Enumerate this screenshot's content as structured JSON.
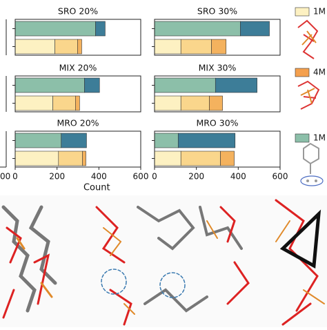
{
  "chart_data": [
    {
      "type": "bar",
      "orientation": "horizontal",
      "title": "SRO 20%",
      "categories": [
        null,
        null
      ],
      "xlim": [
        0,
        600
      ],
      "series": [
        {
          "color": "#8cbfa9",
          "values": [
            384,
            null
          ]
        },
        {
          "color": "#3d7d98",
          "values": [
            46,
            null
          ]
        },
        {
          "color": "#fdf1c2",
          "values": [
            null,
            190
          ]
        },
        {
          "color": "#fad68c",
          "values": [
            null,
            108
          ]
        },
        {
          "color": "#f4b25e",
          "values": [
            null,
            20
          ]
        }
      ]
    },
    {
      "type": "bar",
      "orientation": "horizontal",
      "title": "SRO 30%",
      "categories": [
        null,
        null
      ],
      "xlim": [
        0,
        600
      ],
      "series": [
        {
          "color": "#8cbfa9",
          "values": [
            410,
            null
          ]
        },
        {
          "color": "#3d7d98",
          "values": [
            139,
            null
          ]
        },
        {
          "color": "#fdf1c2",
          "values": [
            null,
            126
          ]
        },
        {
          "color": "#fad68c",
          "values": [
            null,
            146
          ]
        },
        {
          "color": "#f4b25e",
          "values": [
            null,
            70
          ]
        }
      ]
    },
    {
      "type": "bar",
      "orientation": "horizontal",
      "title": "MIX 20%",
      "categories": [
        null,
        null
      ],
      "xlim": [
        0,
        600
      ],
      "series": [
        {
          "color": "#8cbfa9",
          "values": [
            331,
            null
          ]
        },
        {
          "color": "#3d7d98",
          "values": [
            72,
            null
          ]
        },
        {
          "color": "#fdf1c2",
          "values": [
            null,
            180
          ]
        },
        {
          "color": "#fad68c",
          "values": [
            null,
            108
          ]
        },
        {
          "color": "#f4b25e",
          "values": [
            null,
            20
          ]
        }
      ]
    },
    {
      "type": "bar",
      "orientation": "horizontal",
      "title": "MIX 30%",
      "categories": [
        null,
        null
      ],
      "xlim": [
        0,
        600
      ],
      "series": [
        {
          "color": "#8cbfa9",
          "values": [
            291,
            null
          ]
        },
        {
          "color": "#3d7d98",
          "values": [
            199,
            null
          ]
        },
        {
          "color": "#fdf1c2",
          "values": [
            null,
            126
          ]
        },
        {
          "color": "#fad68c",
          "values": [
            null,
            136
          ]
        },
        {
          "color": "#f4b25e",
          "values": [
            null,
            63
          ]
        }
      ]
    },
    {
      "type": "bar",
      "orientation": "horizontal",
      "title": "MRO 20%",
      "categories": [
        null,
        null
      ],
      "xlim": [
        0,
        600
      ],
      "xticks": [
        0,
        200,
        400,
        600
      ],
      "xlabel": "Count",
      "series": [
        {
          "color": "#8cbfa9",
          "values": [
            220,
            null
          ]
        },
        {
          "color": "#3d7d98",
          "values": [
            121,
            null
          ]
        },
        {
          "color": "#fdf1c2",
          "values": [
            null,
            207
          ]
        },
        {
          "color": "#fad68c",
          "values": [
            null,
            115
          ]
        },
        {
          "color": "#f4b25e",
          "values": [
            null,
            16
          ]
        }
      ]
    },
    {
      "type": "bar",
      "orientation": "horizontal",
      "title": "MRO 30%",
      "categories": [
        null,
        null
      ],
      "xlim": [
        0,
        600
      ],
      "xticks": [
        0,
        200,
        400,
        600
      ],
      "series": [
        {
          "color": "#8cbfa9",
          "values": [
            113,
            null
          ]
        },
        {
          "color": "#3d7d98",
          "values": [
            272,
            null
          ]
        },
        {
          "color": "#fdf1c2",
          "values": [
            null,
            126
          ]
        },
        {
          "color": "#fad68c",
          "values": [
            null,
            189
          ]
        },
        {
          "color": "#f4b25e",
          "values": [
            null,
            66
          ]
        }
      ]
    }
  ],
  "legend": [
    {
      "label": "1M",
      "color": "#fdf1c2"
    },
    {
      "label": "4M",
      "color": "#f4a04e"
    },
    {
      "label": "1M",
      "color": "#8cbfa9"
    }
  ],
  "left_fragment": "00"
}
